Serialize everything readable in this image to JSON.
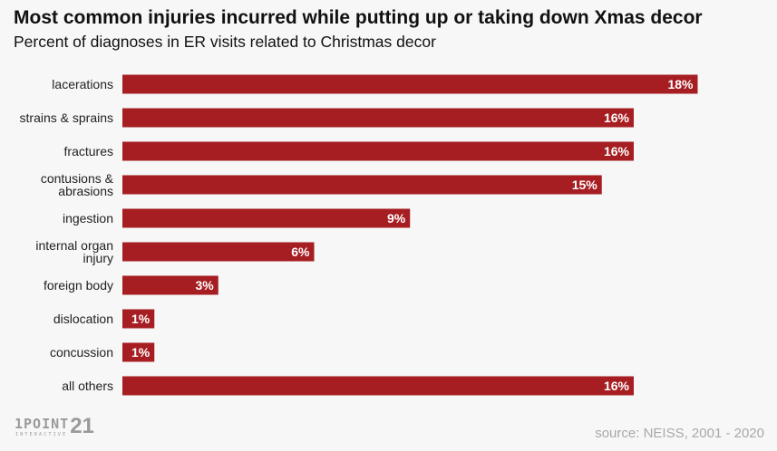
{
  "header": {
    "title": "Most common injuries incurred while putting up or taking down Xmas decor",
    "subtitle": "Percent of diagnoses in ER visits related to Christmas decor"
  },
  "chart_data": {
    "type": "bar",
    "orientation": "horizontal",
    "categories": [
      [
        "lacerations"
      ],
      [
        "strains & sprains"
      ],
      [
        "fractures"
      ],
      [
        "contusions &",
        "abrasions"
      ],
      [
        "ingestion"
      ],
      [
        "internal organ",
        "injury"
      ],
      [
        "foreign body"
      ],
      [
        "dislocation"
      ],
      [
        "concussion"
      ],
      [
        "all others"
      ]
    ],
    "values": [
      18,
      16,
      16,
      15,
      9,
      6,
      3,
      1,
      1,
      16
    ],
    "value_labels": [
      "18%",
      "16%",
      "16%",
      "15%",
      "9%",
      "6%",
      "3%",
      "1%",
      "1%",
      "16%"
    ],
    "unit": "%",
    "bar_color": "#a61e22",
    "grid": false,
    "legend": "none"
  },
  "footer": {
    "logo_main": "1POINT",
    "logo_num": "21",
    "logo_sub": "INTERACTIVE",
    "source": "source: NEISS, 2001 - 2020"
  }
}
